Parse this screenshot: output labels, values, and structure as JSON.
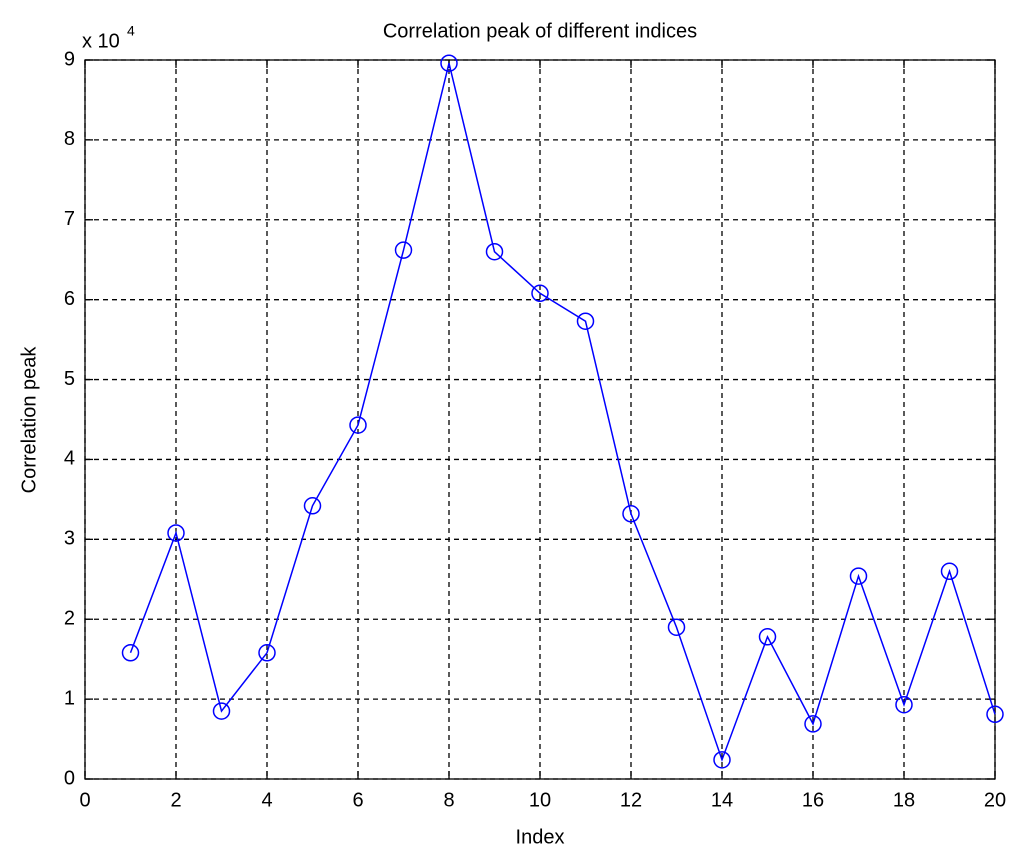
{
  "chart_data": {
    "type": "line",
    "title": "Correlation peak of different indices",
    "x_label": "Index",
    "y_label": "Correlation peak",
    "y_multiplier": {
      "base": "x 10",
      "exponent": "4"
    },
    "x": [
      1,
      2,
      3,
      4,
      5,
      6,
      7,
      8,
      9,
      10,
      11,
      12,
      13,
      14,
      15,
      16,
      17,
      18,
      19,
      20
    ],
    "values": [
      1.58,
      3.08,
      0.85,
      1.58,
      3.42,
      4.43,
      6.62,
      8.96,
      6.6,
      6.08,
      5.73,
      3.32,
      1.9,
      0.24,
      1.78,
      0.69,
      2.54,
      0.93,
      2.6,
      0.81
    ],
    "color": "#0000ff",
    "marker": "circle",
    "xlim": [
      0,
      20
    ],
    "xticks": [
      0,
      2,
      4,
      6,
      8,
      10,
      12,
      14,
      16,
      18,
      20
    ],
    "ylim": [
      0,
      9
    ],
    "yticks": [
      0,
      1,
      2,
      3,
      4,
      5,
      6,
      7,
      8,
      9
    ],
    "grid": true
  }
}
